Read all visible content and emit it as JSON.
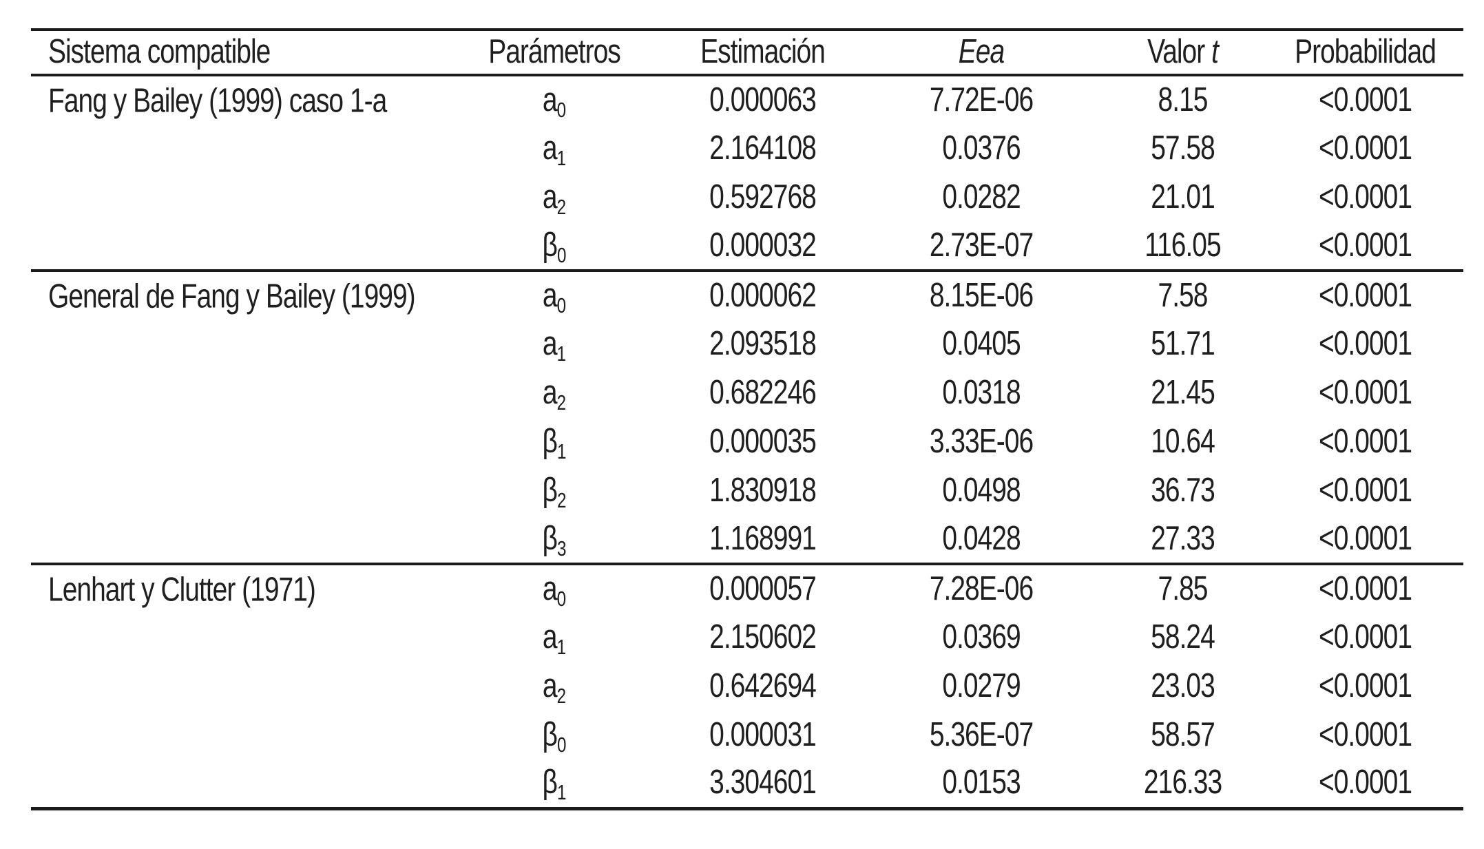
{
  "page": {
    "background": "#ffffff",
    "rule_color": "#1a1a1a",
    "text_color": "#1f1f1f"
  },
  "table": {
    "headers": {
      "system": "Sistema compatible",
      "params": "Parámetros",
      "estimate": "Estimación",
      "eea": "Eea",
      "valor_prefix": "Valor",
      "valor_t": "t",
      "prob": "Probabilidad"
    },
    "groups": [
      {
        "system": "Fang y Bailey (1999) caso 1-a",
        "rows": [
          {
            "param_base": "a",
            "param_sub": "0",
            "estimate": "0.000063",
            "eea": "7.72E-06",
            "t": "8.15",
            "p": "<0.0001"
          },
          {
            "param_base": "a",
            "param_sub": "1",
            "estimate": "2.164108",
            "eea": "0.0376",
            "t": "57.58",
            "p": "<0.0001"
          },
          {
            "param_base": "a",
            "param_sub": "2",
            "estimate": "0.592768",
            "eea": "0.0282",
            "t": "21.01",
            "p": "<0.0001"
          },
          {
            "param_base": "β",
            "param_sub": "0",
            "estimate": "0.000032",
            "eea": "2.73E-07",
            "t": "116.05",
            "p": "<0.0001"
          }
        ]
      },
      {
        "system": "General de Fang y Bailey (1999)",
        "rows": [
          {
            "param_base": "a",
            "param_sub": "0",
            "estimate": "0.000062",
            "eea": "8.15E-06",
            "t": "7.58",
            "p": "<0.0001"
          },
          {
            "param_base": "a",
            "param_sub": "1",
            "estimate": "2.093518",
            "eea": "0.0405",
            "t": "51.71",
            "p": "<0.0001"
          },
          {
            "param_base": "a",
            "param_sub": "2",
            "estimate": "0.682246",
            "eea": "0.0318",
            "t": "21.45",
            "p": "<0.0001"
          },
          {
            "param_base": "β",
            "param_sub": "1",
            "estimate": "0.000035",
            "eea": "3.33E-06",
            "t": "10.64",
            "p": "<0.0001"
          },
          {
            "param_base": "β",
            "param_sub": "2",
            "estimate": "1.830918",
            "eea": "0.0498",
            "t": "36.73",
            "p": "<0.0001"
          },
          {
            "param_base": "β",
            "param_sub": "3",
            "estimate": "1.168991",
            "eea": "0.0428",
            "t": "27.33",
            "p": "<0.0001"
          }
        ]
      },
      {
        "system": "Lenhart y Clutter (1971)",
        "rows": [
          {
            "param_base": "a",
            "param_sub": "0",
            "estimate": "0.000057",
            "eea": "7.28E-06",
            "t": "7.85",
            "p": "<0.0001"
          },
          {
            "param_base": "a",
            "param_sub": "1",
            "estimate": "2.150602",
            "eea": "0.0369",
            "t": "58.24",
            "p": "<0.0001"
          },
          {
            "param_base": "a",
            "param_sub": "2",
            "estimate": "0.642694",
            "eea": "0.0279",
            "t": "23.03",
            "p": "<0.0001"
          },
          {
            "param_base": "β",
            "param_sub": "0",
            "estimate": "0.000031",
            "eea": "5.36E-07",
            "t": "58.57",
            "p": "<0.0001"
          },
          {
            "param_base": "β",
            "param_sub": "1",
            "estimate": "3.304601",
            "eea": "0.0153",
            "t": "216.33",
            "p": "<0.0001"
          }
        ]
      }
    ]
  }
}
